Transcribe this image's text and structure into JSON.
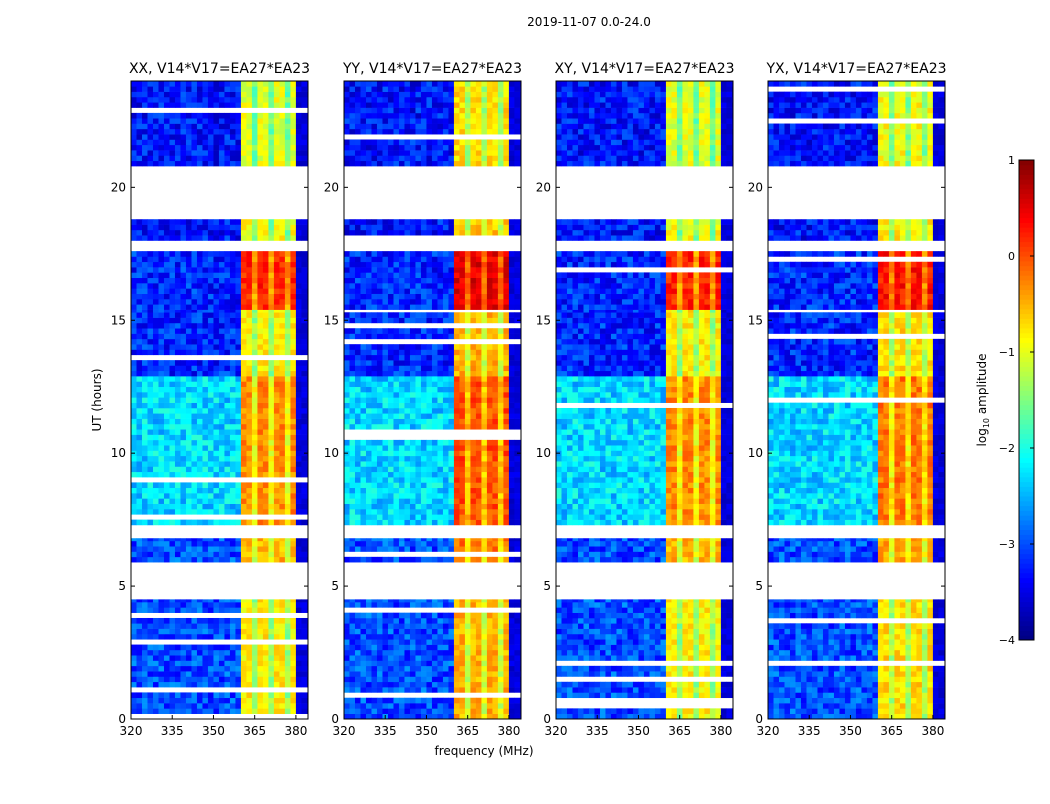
{
  "chart_data": {
    "type": "heatmap",
    "suptitle": "2019-11-07 0.0-24.0",
    "xlabel": "frequency (MHz)",
    "ylabel": "UT (hours)",
    "xlim": [
      320,
      384.4
    ],
    "ylim": [
      0,
      24
    ],
    "xticks": [
      "320",
      "335",
      "350",
      "365",
      "380"
    ],
    "xtick_values": [
      320,
      335,
      350,
      365,
      380
    ],
    "yticks": [
      "0",
      "5",
      "10",
      "15",
      "20"
    ],
    "ytick_values": [
      0,
      5,
      10,
      15,
      20
    ],
    "panels": [
      {
        "title": "XX, V14*V17=EA27*EA23",
        "band_offset": 0
      },
      {
        "title": "YY, V14*V17=EA27*EA23",
        "band_offset": 0.3
      },
      {
        "title": "XY, V14*V17=EA27*EA23",
        "band_offset": 0
      },
      {
        "title": "YX, V14*V17=EA27*EA23",
        "band_offset": 0.1
      }
    ],
    "flagged_hours": [
      [
        4.5,
        5.9
      ],
      [
        6.8,
        7.3
      ],
      [
        17.6,
        18.0
      ],
      [
        18.8,
        20.8
      ]
    ],
    "segments": [
      {
        "from": 0,
        "to": 4.5,
        "base": -3.0,
        "rfi_band": -0.8
      },
      {
        "from": 5.9,
        "to": 6.8,
        "base": -3.0,
        "rfi_band": -0.5
      },
      {
        "from": 7.3,
        "to": 12.9,
        "base": -2.3,
        "rfi_band": -0.3
      },
      {
        "from": 12.9,
        "to": 15.4,
        "base": -3.2,
        "rfi_band": -0.8
      },
      {
        "from": 15.4,
        "to": 17.6,
        "base": -3.2,
        "rfi_band": 0.2
      },
      {
        "from": 18.0,
        "to": 18.8,
        "base": -3.3,
        "rfi_band": -0.9
      },
      {
        "from": 20.8,
        "to": 24,
        "base": -3.3,
        "rfi_band": -1.0
      }
    ],
    "rfi_band_mhz": [
      360,
      380
    ],
    "colorbar": {
      "label": "log10 amplitude",
      "label_main": "log",
      "label_sub": "10",
      "label_rest": " amplitude",
      "range": [
        -4,
        1
      ],
      "ticks": [
        "1",
        "0",
        "−1",
        "−2",
        "−3",
        "−4"
      ],
      "tick_values": [
        1,
        0,
        -1,
        -2,
        -3,
        -4
      ],
      "colormap": "jet"
    }
  }
}
